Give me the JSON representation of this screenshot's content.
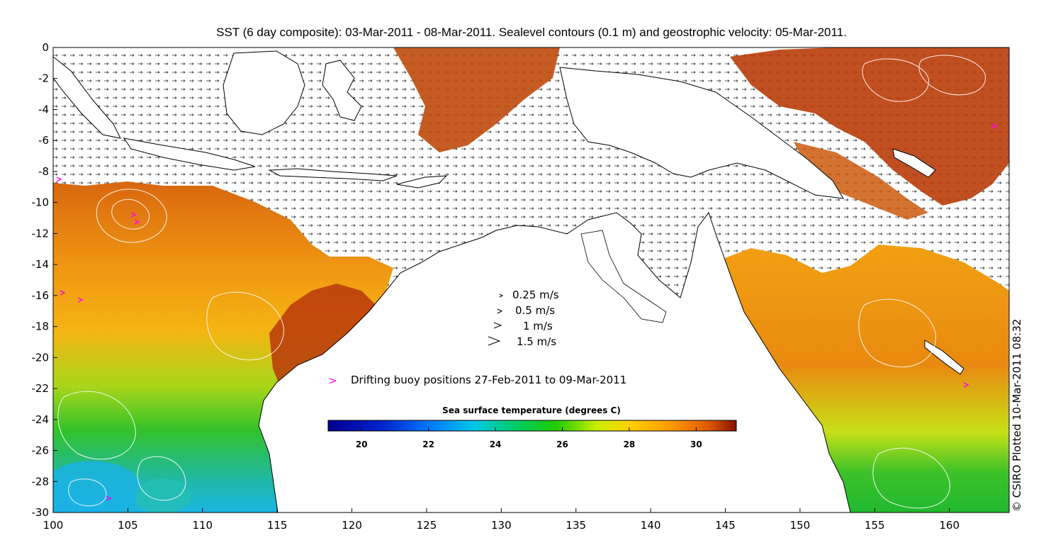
{
  "title": "SST (6 day composite): 03-Mar-2011 - 08-Mar-2011. Sealevel contours (0.1 m) and geostrophic velocity: 05-Mar-2011.",
  "axes": {
    "x_ticks": [
      "100",
      "105",
      "110",
      "115",
      "120",
      "125",
      "130",
      "135",
      "140",
      "145",
      "150",
      "155",
      "160"
    ],
    "y_ticks": [
      "0",
      "-2",
      "-4",
      "-6",
      "-8",
      "-10",
      "-12",
      "-14",
      "-16",
      "-18",
      "-20",
      "-22",
      "-24",
      "-26",
      "-28",
      "-30"
    ],
    "x_range": [
      100,
      164
    ],
    "y_range": [
      -30,
      0
    ]
  },
  "velocity_legend": [
    {
      "label": "0.25 m/s",
      "speed": 0.25
    },
    {
      "label": "0.5 m/s",
      "speed": 0.5
    },
    {
      "label": "1 m/s",
      "speed": 1
    },
    {
      "label": "1.5 m/s",
      "speed": 1.5
    }
  ],
  "buoy_legend": {
    "marker": ">",
    "label": "Drifting buoy positions 27-Feb-2011 to 09-Mar-2011",
    "color": "#ff00ff"
  },
  "colorbar": {
    "title": "Sea surface temperature (degrees C)",
    "ticks": [
      "20",
      "22",
      "24",
      "26",
      "28",
      "30"
    ],
    "range": [
      19,
      31.2
    ]
  },
  "copyright": "© CSIRO Plotted 10-Mar-2011 08:32",
  "colors": {
    "contour": "#ffffff",
    "coast": "#000000",
    "buoy": "#ff00ff"
  }
}
